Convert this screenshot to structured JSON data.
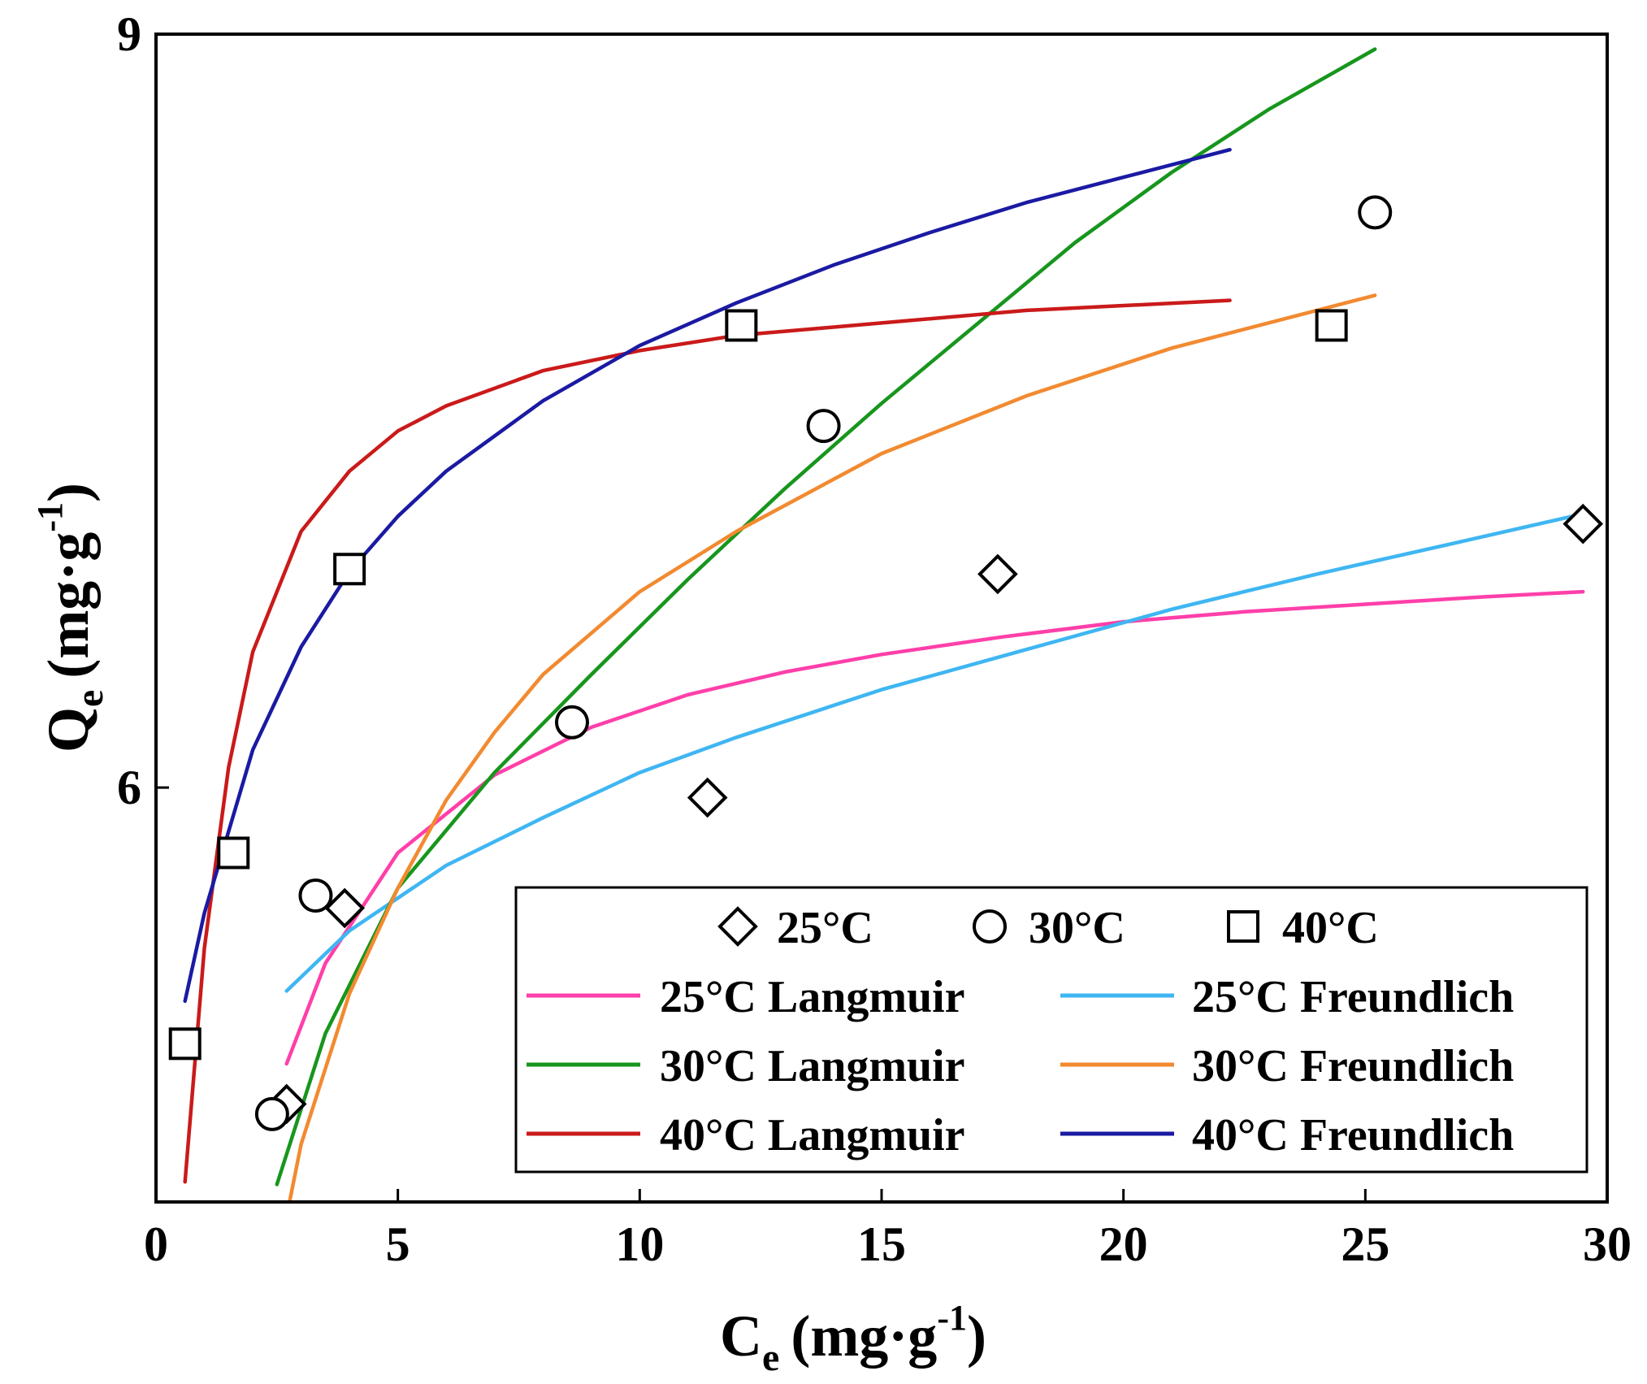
{
  "chart_data": {
    "type": "scatter",
    "title": "",
    "xlabel": {
      "main": "C",
      "sub": "e",
      "unit": "(mg·g",
      "sup": "-1",
      "close": ")"
    },
    "ylabel": {
      "main": "Q",
      "sub": "e",
      "unit": "(mg·g",
      "sup": "-1",
      "close": ")"
    },
    "xlim": [
      0,
      30
    ],
    "ylim": [
      4.35,
      9
    ],
    "xticks": [
      0,
      5,
      10,
      15,
      20,
      25,
      30
    ],
    "yticks": [
      6,
      9
    ],
    "tick_labels_x": [
      "0",
      "5",
      "10",
      "15",
      "20",
      "25",
      "30"
    ],
    "tick_labels_y": [
      "6",
      "9"
    ],
    "grid": false,
    "legend_position": "bottom-right",
    "scatter_series": [
      {
        "name": "25°C",
        "marker": "diamond",
        "color": "#000000",
        "x": [
          2.7,
          3.9,
          11.4,
          17.4,
          29.5
        ],
        "y": [
          4.74,
          5.52,
          5.96,
          6.85,
          7.05
        ]
      },
      {
        "name": "30°C",
        "marker": "circle",
        "color": "#000000",
        "x": [
          2.4,
          3.3,
          8.6,
          13.8,
          25.2
        ],
        "y": [
          4.7,
          5.57,
          6.26,
          7.44,
          8.29
        ]
      },
      {
        "name": "40°C",
        "marker": "square",
        "color": "#000000",
        "x": [
          0.6,
          1.6,
          4.0,
          12.1,
          24.3
        ],
        "y": [
          4.98,
          5.74,
          6.87,
          7.84,
          7.84
        ]
      }
    ],
    "line_series": [
      {
        "name": "25°C Langmuir",
        "color": "#ff3fa9",
        "x": [
          2.7,
          3.5,
          5,
          7,
          9,
          11,
          13,
          15,
          17.5,
          20,
          22.5,
          25,
          27.5,
          29.5
        ],
        "y": [
          4.9,
          5.3,
          5.74,
          6.05,
          6.24,
          6.37,
          6.46,
          6.53,
          6.6,
          6.66,
          6.7,
          6.73,
          6.76,
          6.78
        ]
      },
      {
        "name": "25°C Freundlich",
        "color": "#3fb6f2",
        "x": [
          2.7,
          4,
          6,
          8,
          10,
          12,
          15,
          18,
          21,
          24,
          27,
          29.5
        ],
        "y": [
          5.19,
          5.43,
          5.69,
          5.88,
          6.06,
          6.2,
          6.39,
          6.55,
          6.71,
          6.85,
          6.98,
          7.09
        ]
      },
      {
        "name": "30°C Langmuir",
        "color": "#17961d",
        "x": [
          2.5,
          3.5,
          5,
          7,
          9,
          11,
          13,
          15,
          17,
          19,
          21,
          23,
          25.2
        ],
        "y": [
          4.42,
          5.02,
          5.6,
          6.06,
          6.45,
          6.83,
          7.19,
          7.53,
          7.85,
          8.17,
          8.45,
          8.7,
          8.94
        ]
      },
      {
        "name": "30°C Freundlich",
        "color": "#f28a30",
        "x": [
          2.5,
          3,
          4,
          5,
          6,
          7,
          8,
          10,
          12,
          15,
          18,
          21,
          25.2
        ],
        "y": [
          4.1,
          4.58,
          5.18,
          5.6,
          5.95,
          6.22,
          6.45,
          6.78,
          7.02,
          7.33,
          7.56,
          7.75,
          7.96
        ]
      },
      {
        "name": "40°C Langmuir",
        "color": "#ca1a1a",
        "x": [
          0.6,
          1,
          1.5,
          2,
          3,
          4,
          5,
          6,
          8,
          10,
          12,
          15,
          18,
          22.2
        ],
        "y": [
          4.43,
          5.36,
          6.08,
          6.54,
          7.02,
          7.26,
          7.42,
          7.52,
          7.66,
          7.74,
          7.8,
          7.85,
          7.9,
          7.94
        ]
      },
      {
        "name": "40°C Freundlich",
        "color": "#1a1aa3",
        "x": [
          0.6,
          1,
          2,
          3,
          4,
          5,
          6,
          8,
          10,
          12,
          14,
          16,
          18,
          20,
          22.2
        ],
        "y": [
          5.15,
          5.5,
          6.15,
          6.56,
          6.86,
          7.08,
          7.26,
          7.54,
          7.76,
          7.93,
          8.08,
          8.21,
          8.33,
          8.43,
          8.54
        ]
      }
    ],
    "legend": {
      "marker_entries": [
        {
          "label": "25°C",
          "marker": "diamond"
        },
        {
          "label": "30°C",
          "marker": "circle"
        },
        {
          "label": "40°C",
          "marker": "square"
        }
      ],
      "line_entries": [
        {
          "label": "25°C Langmuir",
          "color": "#ff3fa9"
        },
        {
          "label": "25°C Freundlich",
          "color": "#3fb6f2"
        },
        {
          "label": "30°C Langmuir",
          "color": "#17961d"
        },
        {
          "label": "30°C Freundlich",
          "color": "#f28a30"
        },
        {
          "label": "40°C Langmuir",
          "color": "#ca1a1a"
        },
        {
          "label": "40°C Freundlich",
          "color": "#1a1aa3"
        }
      ]
    }
  }
}
